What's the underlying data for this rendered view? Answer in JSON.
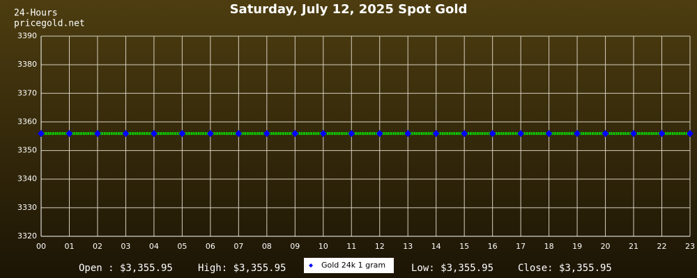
{
  "chart_data": {
    "type": "line",
    "title": "Saturday, July 12, 2025 Spot Gold",
    "period": "24-Hours",
    "source": "pricegold.net",
    "categories": [
      "00",
      "01",
      "02",
      "03",
      "04",
      "05",
      "06",
      "07",
      "08",
      "09",
      "10",
      "11",
      "12",
      "13",
      "14",
      "15",
      "16",
      "17",
      "18",
      "19",
      "20",
      "21",
      "22",
      "23"
    ],
    "series": [
      {
        "name": "Gold 24k 1 gram",
        "color": "#00ff00",
        "marker_color": "#0000ff",
        "values": [
          3355.95,
          3355.95,
          3355.95,
          3355.95,
          3355.95,
          3355.95,
          3355.95,
          3355.95,
          3355.95,
          3355.95,
          3355.95,
          3355.95,
          3355.95,
          3355.95,
          3355.95,
          3355.95,
          3355.95,
          3355.95,
          3355.95,
          3355.95,
          3355.95,
          3355.95,
          3355.95,
          3355.95
        ]
      }
    ],
    "ylim": [
      3320,
      3390
    ],
    "yticks": [
      3320,
      3330,
      3340,
      3350,
      3360,
      3370,
      3380,
      3390
    ],
    "grid": true,
    "stats": {
      "open": "Open : $3,355.95",
      "high": "High: $3,355.95",
      "low": "Low: $3,355.95",
      "close": "Close: $3,355.95"
    }
  }
}
